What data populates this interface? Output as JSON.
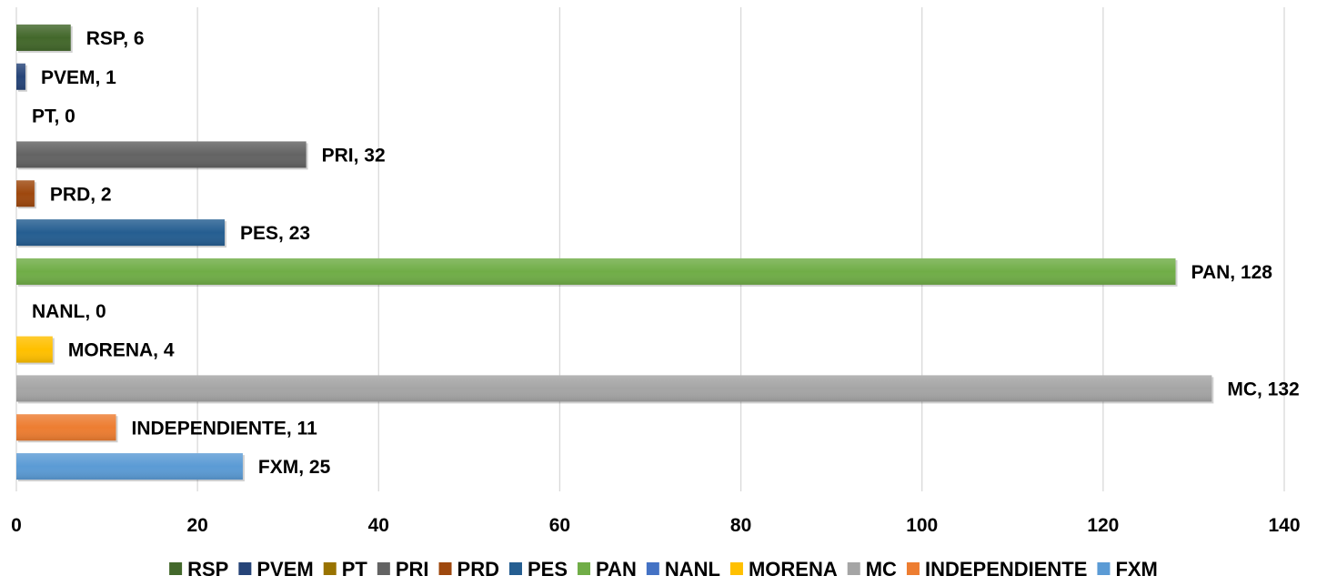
{
  "chart_data": {
    "type": "bar",
    "orientation": "horizontal",
    "categories": [
      "FXM",
      "INDEPENDIENTE",
      "MC",
      "MORENA",
      "NANL",
      "PAN",
      "PES",
      "PRD",
      "PRI",
      "PT",
      "PVEM",
      "RSP"
    ],
    "values": [
      25,
      11,
      132,
      4,
      0,
      128,
      23,
      2,
      32,
      0,
      1,
      6
    ],
    "colors": {
      "FXM": "#5b9bd5",
      "INDEPENDIENTE": "#ed7d31",
      "MC": "#a5a5a5",
      "MORENA": "#ffc000",
      "NANL": "#4472c4",
      "PAN": "#70ad47",
      "PES": "#255e91",
      "PRD": "#9e480e",
      "PRI": "#636363",
      "PT": "#997300",
      "PVEM": "#264478",
      "RSP": "#43682b"
    },
    "data_labels": [
      "FXM, 25",
      "INDEPENDIENTE, 11",
      "MC, 132",
      "MORENA, 4",
      "NANL, 0",
      "PAN, 128",
      "PES, 23",
      "PRD, 2",
      "PRI, 32",
      "PT, 0",
      "PVEM, 1",
      "RSP, 6"
    ],
    "x_ticks": [
      "0",
      "20",
      "40",
      "60",
      "80",
      "100",
      "120",
      "140"
    ],
    "xlim": [
      0,
      140
    ],
    "grid": true,
    "legend": {
      "position": "bottom",
      "items": [
        "RSP",
        "PVEM",
        "PT",
        "PRI",
        "PRD",
        "PES",
        "PAN",
        "NANL",
        "MORENA",
        "MC",
        "INDEPENDIENTE",
        "FXM"
      ]
    }
  }
}
